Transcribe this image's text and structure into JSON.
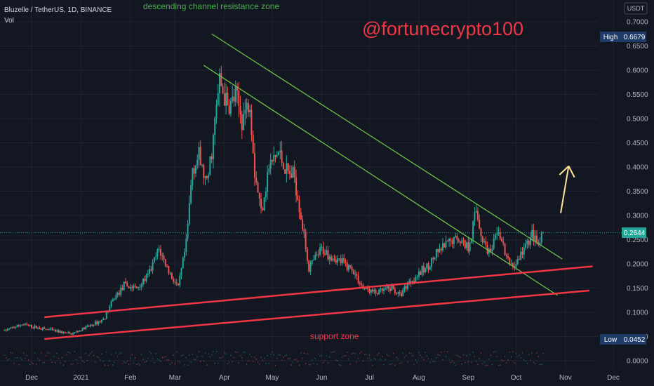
{
  "header": {
    "symbol_line": "Bluzelle / TetherUS, 1D, BINANCE",
    "volume_label": "Vol"
  },
  "currency_badge": "USDT",
  "watermark": "@fortunecrypto100",
  "annotations": {
    "resistance": "descending channel resistance zone",
    "support": "support zone"
  },
  "price_badges": {
    "high_label": "High",
    "high_value": "0.6679",
    "current_value": "0.2644",
    "low_label": "Low",
    "low_value": "0.0452"
  },
  "colors": {
    "background": "#131722",
    "up_candle": "#26a69a",
    "down_candle": "#ef5350",
    "resistance_line": "#6cc04a",
    "support_line": "#f23645",
    "arrow": "#ffe69a",
    "current_price_badge": "#26a69a",
    "high_low_badge": "#1e3a66"
  },
  "chart_data": {
    "type": "candlestick",
    "title": "Bluzelle / TetherUS, 1D, BINANCE",
    "y_axis": {
      "side": "right",
      "range": [
        -0.01,
        0.72
      ],
      "ticks": [
        "0.7000",
        "0.6500",
        "0.6000",
        "0.5500",
        "0.5000",
        "0.4500",
        "0.4000",
        "0.3500",
        "0.3000",
        "0.2500",
        "0.2000",
        "0.1500",
        "0.1000",
        "0.0500",
        "0.0000"
      ]
    },
    "x_axis": {
      "range": [
        "2020-11-20",
        "2020-12-31"
      ],
      "ticks": [
        {
          "label": "Dec",
          "date": "2020-12-01"
        },
        {
          "label": "2021",
          "date": "2021-01-01"
        },
        {
          "label": "Feb",
          "date": "2021-02-01"
        },
        {
          "label": "Mar",
          "date": "2021-03-01"
        },
        {
          "label": "Apr",
          "date": "2021-04-01"
        },
        {
          "label": "May",
          "date": "2021-05-01"
        },
        {
          "label": "Jun",
          "date": "2021-06-01"
        },
        {
          "label": "Jul",
          "date": "2021-07-01"
        },
        {
          "label": "Aug",
          "date": "2021-08-01"
        },
        {
          "label": "Sep",
          "date": "2021-09-01"
        },
        {
          "label": "Oct",
          "date": "2021-10-01"
        },
        {
          "label": "Nov",
          "date": "2021-11-01"
        },
        {
          "label": "Dec",
          "date": "2021-12-01"
        }
      ]
    },
    "price_path": [
      [
        "2020-11-14",
        0.062
      ],
      [
        "2020-11-25",
        0.075
      ],
      [
        "2020-12-05",
        0.068
      ],
      [
        "2020-12-18",
        0.06
      ],
      [
        "2020-12-26",
        0.055
      ],
      [
        "2021-01-05",
        0.07
      ],
      [
        "2021-01-15",
        0.085
      ],
      [
        "2021-01-22",
        0.13
      ],
      [
        "2021-01-28",
        0.155
      ],
      [
        "2021-02-05",
        0.15
      ],
      [
        "2021-02-12",
        0.175
      ],
      [
        "2021-02-19",
        0.23
      ],
      [
        "2021-02-25",
        0.185
      ],
      [
        "2021-03-03",
        0.15
      ],
      [
        "2021-03-08",
        0.24
      ],
      [
        "2021-03-12",
        0.4
      ],
      [
        "2021-03-16",
        0.42
      ],
      [
        "2021-03-21",
        0.36
      ],
      [
        "2021-03-25",
        0.46
      ],
      [
        "2021-03-29",
        0.58
      ],
      [
        "2021-04-03",
        0.52
      ],
      [
        "2021-04-08",
        0.545
      ],
      [
        "2021-04-12",
        0.5
      ],
      [
        "2021-04-17",
        0.54
      ],
      [
        "2021-04-20",
        0.39
      ],
      [
        "2021-04-24",
        0.31
      ],
      [
        "2021-04-29",
        0.4
      ],
      [
        "2021-05-05",
        0.43
      ],
      [
        "2021-05-10",
        0.39
      ],
      [
        "2021-05-15",
        0.38
      ],
      [
        "2021-05-19",
        0.3
      ],
      [
        "2021-05-24",
        0.19
      ],
      [
        "2021-06-01",
        0.23
      ],
      [
        "2021-06-10",
        0.21
      ],
      [
        "2021-06-20",
        0.19
      ],
      [
        "2021-06-27",
        0.15
      ],
      [
        "2021-07-05",
        0.14
      ],
      [
        "2021-07-15",
        0.15
      ],
      [
        "2021-07-20",
        0.135
      ],
      [
        "2021-07-25",
        0.16
      ],
      [
        "2021-08-05",
        0.19
      ],
      [
        "2021-08-15",
        0.23
      ],
      [
        "2021-08-25",
        0.255
      ],
      [
        "2021-09-01",
        0.235
      ],
      [
        "2021-09-06",
        0.31
      ],
      [
        "2021-09-10",
        0.25
      ],
      [
        "2021-09-15",
        0.22
      ],
      [
        "2021-09-20",
        0.27
      ],
      [
        "2021-09-25",
        0.21
      ],
      [
        "2021-09-30",
        0.195
      ],
      [
        "2021-10-05",
        0.225
      ],
      [
        "2021-10-11",
        0.26
      ],
      [
        "2021-10-15",
        0.235
      ],
      [
        "2021-10-18",
        0.2644
      ]
    ],
    "high": 0.6679,
    "low": 0.0452,
    "last": 0.2644,
    "lines": [
      {
        "name": "descending channel resistance zone",
        "kind": "resistance",
        "from": [
          "2021-03-24",
          0.675
        ],
        "to": [
          "2021-10-30",
          0.21
        ]
      },
      {
        "name": "descending channel resistance zone",
        "kind": "resistance",
        "from": [
          "2021-03-19",
          0.61
        ],
        "to": [
          "2021-10-27",
          0.135
        ]
      },
      {
        "name": "support zone",
        "kind": "support",
        "from": [
          "2020-12-09",
          0.09
        ],
        "to": [
          "2021-11-18",
          0.195
        ]
      },
      {
        "name": "support zone",
        "kind": "support",
        "from": [
          "2020-12-09",
          0.045
        ],
        "to": [
          "2021-11-16",
          0.145
        ]
      }
    ],
    "arrow": {
      "from": [
        "2021-10-29",
        0.305
      ],
      "to": [
        "2021-11-03",
        0.402
      ]
    },
    "grid": true
  }
}
